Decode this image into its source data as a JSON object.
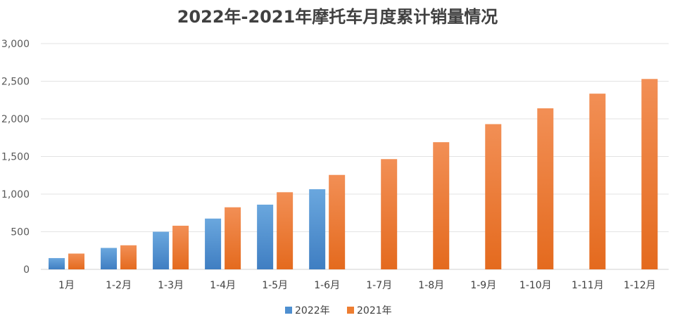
{
  "chart_data": {
    "type": "bar",
    "title": "2022年-2021年摩托车月度累计销量情况",
    "xlabel": "",
    "ylabel": "",
    "categories": [
      "1月",
      "1-2月",
      "1-3月",
      "1-4月",
      "1-5月",
      "1-6月",
      "1-7月",
      "1-8月",
      "1-9月",
      "1-10月",
      "1-11月",
      "1-12月"
    ],
    "series": [
      {
        "name": "2022年",
        "color": "#4e8fd0",
        "values": [
          150,
          285,
          500,
          675,
          860,
          1065,
          null,
          null,
          null,
          null,
          null,
          null
        ]
      },
      {
        "name": "2021年",
        "color": "#ed7d31",
        "values": [
          210,
          320,
          580,
          825,
          1025,
          1255,
          1465,
          1690,
          1930,
          2140,
          2335,
          2530
        ]
      }
    ],
    "ylim": [
      0,
      3000
    ],
    "yticks": [
      0,
      500,
      1000,
      1500,
      2000,
      2500,
      3000
    ],
    "ytick_labels": [
      "0",
      "500",
      "1,000",
      "1,500",
      "2,000",
      "2,500",
      "3,000"
    ],
    "grid": true,
    "legend_position": "bottom"
  }
}
